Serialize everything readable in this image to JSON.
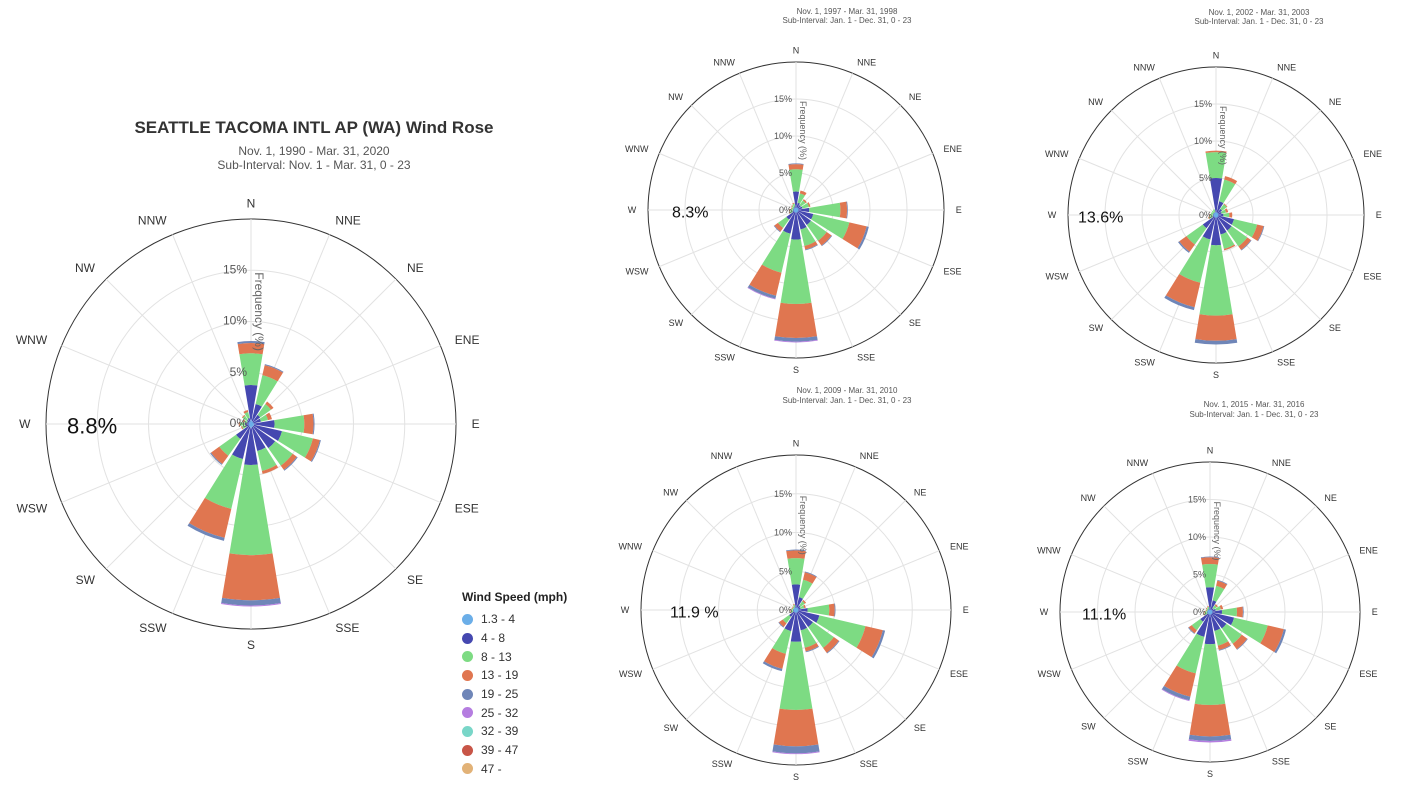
{
  "main": {
    "title": "SEATTLE TACOMA INTL AP (WA) Wind Rose",
    "date_range": "Nov. 1, 1990 - Mar. 31, 2020",
    "sub_interval": "Sub-Interval: Nov. 1 - Mar. 31, 0 - 23"
  },
  "legend": {
    "title": "Wind Speed (mph)",
    "items": [
      {
        "label": "1.3 - 4",
        "color": "#6baee8"
      },
      {
        "label": "4 - 8",
        "color": "#4548b0"
      },
      {
        "label": "8 - 13",
        "color": "#7ddb83"
      },
      {
        "label": "13 - 19",
        "color": "#e07650"
      },
      {
        "label": "19 - 25",
        "color": "#6f86b8"
      },
      {
        "label": "25 - 32",
        "color": "#b57de0"
      },
      {
        "label": "32 - 39",
        "color": "#79d6c8"
      },
      {
        "label": "39 - 47",
        "color": "#c85547"
      },
      {
        "label": "47 -",
        "color": "#e2b277"
      }
    ]
  },
  "chart_data": [
    {
      "type": "wind-rose",
      "id": "main",
      "title": "SEATTLE TACOMA INTL AP (WA) Wind Rose",
      "subtitle": [
        "Nov. 1, 1990 - Mar. 31, 2020",
        "Sub-Interval: Nov. 1 - Mar. 31, 0 - 23"
      ],
      "radial_label": "Frequency (%)",
      "rmax": 20,
      "radial_ticks": [
        "0%",
        "5%",
        "10%",
        "15%"
      ],
      "calm_label": "8.8%",
      "directions": [
        "N",
        "NNE",
        "NE",
        "ENE",
        "E",
        "ESE",
        "SE",
        "SSE",
        "S",
        "SSW",
        "SW",
        "WSW",
        "W",
        "WNW",
        "NW",
        "NNW"
      ],
      "series_names": [
        "1.3 - 4",
        "4 - 8",
        "8 - 13",
        "13 - 19",
        "19 - 25",
        "25 - 32",
        "32 - 39",
        "39 - 47",
        "47 -"
      ],
      "values": [
        [
          0.4,
          3.4,
          3.1,
          1.0,
          0.2,
          0,
          0,
          0,
          0
        ],
        [
          0.3,
          1.7,
          2.9,
          1.0,
          0.1,
          0,
          0,
          0,
          0
        ],
        [
          0.2,
          0.9,
          1.3,
          0.3,
          0,
          0,
          0,
          0,
          0
        ],
        [
          0.2,
          0.8,
          0.7,
          0.4,
          0,
          0,
          0,
          0,
          0
        ],
        [
          0.3,
          2.0,
          2.9,
          0.9,
          0.1,
          0,
          0,
          0,
          0
        ],
        [
          0.3,
          2.8,
          3.1,
          0.7,
          0.1,
          0,
          0,
          0,
          0
        ],
        [
          0.3,
          2.6,
          2.1,
          0.5,
          0.1,
          0,
          0,
          0,
          0
        ],
        [
          0.3,
          2.4,
          2.0,
          0.3,
          0,
          0,
          0,
          0,
          0
        ],
        [
          0.4,
          3.6,
          8.8,
          4.4,
          0.5,
          0.1,
          0,
          0,
          0
        ],
        [
          0.3,
          3.2,
          5.0,
          2.9,
          0.3,
          0,
          0,
          0,
          0
        ],
        [
          0.2,
          1.6,
          2.0,
          1.0,
          0.1,
          0,
          0,
          0,
          0
        ],
        [
          0.1,
          0.4,
          0.4,
          0.1,
          0,
          0,
          0,
          0,
          0
        ],
        [
          0.1,
          0.5,
          0.5,
          0.1,
          0,
          0,
          0,
          0,
          0
        ],
        [
          0.1,
          0.3,
          0.3,
          0.1,
          0,
          0,
          0,
          0,
          0
        ],
        [
          0.1,
          0.4,
          0.5,
          0.1,
          0,
          0,
          0,
          0,
          0
        ],
        [
          0.1,
          0.5,
          0.6,
          0.2,
          0,
          0,
          0,
          0,
          0
        ]
      ]
    },
    {
      "type": "wind-rose",
      "id": "y1997",
      "subtitle": [
        "Nov. 1, 1997 - Mar. 31, 1998",
        "Sub-Interval: Jan. 1 - Dec. 31, 0 - 23"
      ],
      "radial_label": "Frequency (%)",
      "rmax": 20,
      "radial_ticks": [
        "0%",
        "5%",
        "10%",
        "15%"
      ],
      "calm_label": "8.3%",
      "directions": [
        "N",
        "NNE",
        "NE",
        "ENE",
        "E",
        "ESE",
        "SE",
        "SSE",
        "S",
        "SSW",
        "SW",
        "WSW",
        "W",
        "WNW",
        "NW",
        "NNW"
      ],
      "series_names": [
        "1.3 - 4",
        "4 - 8",
        "8 - 13",
        "13 - 19",
        "19 - 25",
        "25 - 32",
        "32 - 39",
        "39 - 47",
        "47 -"
      ],
      "values": [
        [
          0.3,
          2.2,
          3.0,
          0.7,
          0.1,
          0,
          0,
          0,
          0
        ],
        [
          0.2,
          0.8,
          1.3,
          0.4,
          0,
          0,
          0,
          0,
          0
        ],
        [
          0.2,
          0.6,
          0.8,
          0.2,
          0,
          0,
          0,
          0,
          0
        ],
        [
          0.2,
          0.7,
          0.9,
          0.2,
          0,
          0,
          0,
          0,
          0
        ],
        [
          0.3,
          1.5,
          4.2,
          0.9,
          0.1,
          0,
          0,
          0,
          0
        ],
        [
          0.3,
          2.1,
          5.0,
          2.4,
          0.3,
          0,
          0,
          0,
          0
        ],
        [
          0.3,
          2.2,
          2.6,
          0.8,
          0.1,
          0,
          0,
          0,
          0
        ],
        [
          0.3,
          2.4,
          2.3,
          0.5,
          0.1,
          0,
          0,
          0,
          0
        ],
        [
          0.4,
          3.6,
          8.7,
          4.6,
          0.5,
          0.1,
          0,
          0,
          0
        ],
        [
          0.3,
          3.0,
          5.4,
          3.2,
          0.4,
          0.1,
          0,
          0,
          0
        ],
        [
          0.2,
          1.4,
          1.4,
          0.6,
          0.1,
          0,
          0,
          0,
          0
        ],
        [
          0.1,
          0.4,
          0.4,
          0.1,
          0,
          0,
          0,
          0,
          0
        ],
        [
          0.1,
          0.3,
          0.4,
          0.1,
          0,
          0,
          0,
          0,
          0
        ],
        [
          0.1,
          0.3,
          0.2,
          0.1,
          0,
          0,
          0,
          0,
          0
        ],
        [
          0.1,
          0.3,
          0.3,
          0.1,
          0,
          0,
          0,
          0,
          0
        ],
        [
          0.1,
          0.4,
          0.4,
          0.1,
          0,
          0,
          0,
          0,
          0
        ]
      ]
    },
    {
      "type": "wind-rose",
      "id": "y2002",
      "subtitle": [
        "Nov. 1, 2002 - Mar. 31, 2003",
        "Sub-Interval: Jan. 1 - Dec. 31, 0 - 23"
      ],
      "radial_label": "Frequency (%)",
      "rmax": 20,
      "radial_ticks": [
        "0%",
        "5%",
        "10%",
        "15%"
      ],
      "calm_label": "13.6%",
      "directions": [
        "N",
        "NNE",
        "NE",
        "ENE",
        "E",
        "ESE",
        "SE",
        "SSE",
        "S",
        "SSW",
        "SW",
        "WSW",
        "W",
        "WNW",
        "NW",
        "NNW"
      ],
      "series_names": [
        "1.3 - 4",
        "4 - 8",
        "8 - 13",
        "13 - 19",
        "19 - 25",
        "25 - 32",
        "32 - 39",
        "39 - 47",
        "47 -"
      ],
      "values": [
        [
          0.4,
          4.6,
          3.5,
          0.2,
          0,
          0,
          0,
          0,
          0
        ],
        [
          0.3,
          1.6,
          3.0,
          0.5,
          0,
          0,
          0,
          0,
          0
        ],
        [
          0.2,
          0.8,
          0.8,
          0.1,
          0,
          0,
          0,
          0,
          0
        ],
        [
          0.2,
          0.6,
          0.6,
          0.3,
          0,
          0,
          0,
          0,
          0
        ],
        [
          0.2,
          0.8,
          0.8,
          0.4,
          0,
          0,
          0,
          0,
          0
        ],
        [
          0.3,
          2.2,
          3.2,
          0.9,
          0.1,
          0,
          0,
          0,
          0
        ],
        [
          0.3,
          2.3,
          2.6,
          0.6,
          0.1,
          0,
          0,
          0,
          0
        ],
        [
          0.3,
          2.4,
          2.0,
          0.2,
          0,
          0,
          0,
          0,
          0
        ],
        [
          0.4,
          3.7,
          9.5,
          3.4,
          0.5,
          0,
          0,
          0,
          0
        ],
        [
          0.3,
          3.1,
          6.0,
          3.4,
          0.4,
          0,
          0,
          0,
          0
        ],
        [
          0.2,
          2.0,
          2.7,
          1.2,
          0.2,
          0,
          0,
          0,
          0
        ],
        [
          0.1,
          0.4,
          0.5,
          0.1,
          0,
          0,
          0,
          0,
          0
        ],
        [
          0.1,
          0.3,
          0.4,
          0.1,
          0,
          0,
          0,
          0,
          0
        ],
        [
          0.1,
          0.3,
          0.3,
          0,
          0,
          0,
          0,
          0,
          0
        ],
        [
          0.1,
          0.3,
          0.3,
          0,
          0,
          0,
          0,
          0,
          0
        ],
        [
          0.1,
          0.3,
          0.4,
          0,
          0,
          0,
          0,
          0,
          0
        ]
      ]
    },
    {
      "type": "wind-rose",
      "id": "y2009",
      "subtitle": [
        "Nov. 1, 2009 - Mar. 31, 2010",
        "Sub-Interval: Jan. 1 - Dec. 31, 0 - 23"
      ],
      "radial_label": "Frequency (%)",
      "rmax": 20,
      "radial_ticks": [
        "0%",
        "5%",
        "10%",
        "15%"
      ],
      "calm_label": "11.9 %",
      "directions": [
        "N",
        "NNE",
        "NE",
        "ENE",
        "E",
        "ESE",
        "SE",
        "SSE",
        "S",
        "SSW",
        "SW",
        "WSW",
        "W",
        "WNW",
        "NW",
        "NNW"
      ],
      "series_names": [
        "1.3 - 4",
        "4 - 8",
        "8 - 13",
        "13 - 19",
        "19 - 25",
        "25 - 32",
        "32 - 39",
        "39 - 47",
        "47 -"
      ],
      "values": [
        [
          0.3,
          3.0,
          3.4,
          1.0,
          0.1,
          0,
          0,
          0,
          0
        ],
        [
          0.2,
          1.5,
          2.3,
          1.0,
          0.1,
          0,
          0,
          0,
          0
        ],
        [
          0.2,
          0.5,
          0.7,
          0.2,
          0,
          0,
          0,
          0,
          0
        ],
        [
          0.2,
          0.4,
          0.5,
          0.2,
          0,
          0,
          0,
          0,
          0
        ],
        [
          0.3,
          1.2,
          2.8,
          0.7,
          0.1,
          0,
          0,
          0,
          0
        ],
        [
          0.3,
          2.8,
          6.1,
          2.3,
          0.3,
          0,
          0,
          0,
          0
        ],
        [
          0.3,
          2.4,
          3.3,
          0.8,
          0.1,
          0,
          0,
          0,
          0
        ],
        [
          0.3,
          2.4,
          2.3,
          0.5,
          0.1,
          0,
          0,
          0,
          0
        ],
        [
          0.4,
          3.7,
          8.8,
          4.7,
          0.9,
          0.1,
          0,
          0,
          0
        ],
        [
          0.3,
          2.5,
          3.0,
          2.0,
          0.3,
          0,
          0,
          0,
          0
        ],
        [
          0.2,
          0.9,
          1.0,
          0.6,
          0.1,
          0,
          0,
          0,
          0
        ],
        [
          0.1,
          0.3,
          0.3,
          0.1,
          0,
          0,
          0,
          0,
          0
        ],
        [
          0.1,
          0.3,
          0.3,
          0.1,
          0,
          0,
          0,
          0,
          0
        ],
        [
          0.1,
          0.2,
          0.2,
          0.1,
          0,
          0,
          0,
          0,
          0
        ],
        [
          0.1,
          0.2,
          0.2,
          0.1,
          0,
          0,
          0,
          0,
          0
        ],
        [
          0.1,
          0.3,
          0.3,
          0.1,
          0,
          0,
          0,
          0,
          0
        ]
      ]
    },
    {
      "type": "wind-rose",
      "id": "y2015",
      "subtitle": [
        "Nov. 1, 2015 - Mar. 31, 2016",
        "Sub-Interval: Jan. 1 - Dec. 31, 0 - 23"
      ],
      "radial_label": "Frequency (%)",
      "rmax": 20,
      "radial_ticks": [
        "0%",
        "5%",
        "10%",
        "15%"
      ],
      "calm_label": "11.1%",
      "directions": [
        "N",
        "NNE",
        "NE",
        "ENE",
        "E",
        "ESE",
        "SE",
        "SSE",
        "S",
        "SSW",
        "SW",
        "WSW",
        "W",
        "WNW",
        "NW",
        "NNW"
      ],
      "series_names": [
        "1.3 - 4",
        "4 - 8",
        "8 - 13",
        "13 - 19",
        "19 - 25",
        "25 - 32",
        "32 - 39",
        "39 - 47",
        "47 -"
      ],
      "values": [
        [
          0.3,
          3.0,
          3.1,
          0.9,
          0.1,
          0,
          0,
          0,
          0
        ],
        [
          0.2,
          1.4,
          2.0,
          0.7,
          0.1,
          0,
          0,
          0,
          0
        ],
        [
          0.2,
          0.4,
          0.5,
          0.2,
          0,
          0,
          0,
          0,
          0
        ],
        [
          0.2,
          0.6,
          0.7,
          0.3,
          0,
          0,
          0,
          0,
          0
        ],
        [
          0.3,
          1.3,
          2.0,
          0.8,
          0.1,
          0,
          0,
          0,
          0
        ],
        [
          0.3,
          3.0,
          4.6,
          2.2,
          0.3,
          0,
          0,
          0,
          0
        ],
        [
          0.3,
          2.4,
          2.5,
          0.9,
          0.1,
          0,
          0,
          0,
          0
        ],
        [
          0.3,
          2.3,
          2.0,
          0.6,
          0.1,
          0,
          0,
          0,
          0
        ],
        [
          0.4,
          3.9,
          8.1,
          4.2,
          0.6,
          0.2,
          0,
          0,
          0
        ],
        [
          0.3,
          3.1,
          5.0,
          3.2,
          0.5,
          0.1,
          0,
          0,
          0
        ],
        [
          0.2,
          1.4,
          1.4,
          0.5,
          0.1,
          0,
          0,
          0,
          0
        ],
        [
          0.1,
          0.3,
          0.4,
          0.1,
          0,
          0,
          0,
          0,
          0
        ],
        [
          0.1,
          0.3,
          0.3,
          0.1,
          0,
          0,
          0,
          0,
          0
        ],
        [
          0.1,
          0.2,
          0.2,
          0.1,
          0,
          0,
          0,
          0,
          0
        ],
        [
          0.1,
          0.3,
          0.2,
          0.1,
          0,
          0,
          0,
          0,
          0
        ],
        [
          0.1,
          0.3,
          0.3,
          0.1,
          0,
          0,
          0,
          0,
          0
        ]
      ]
    }
  ]
}
